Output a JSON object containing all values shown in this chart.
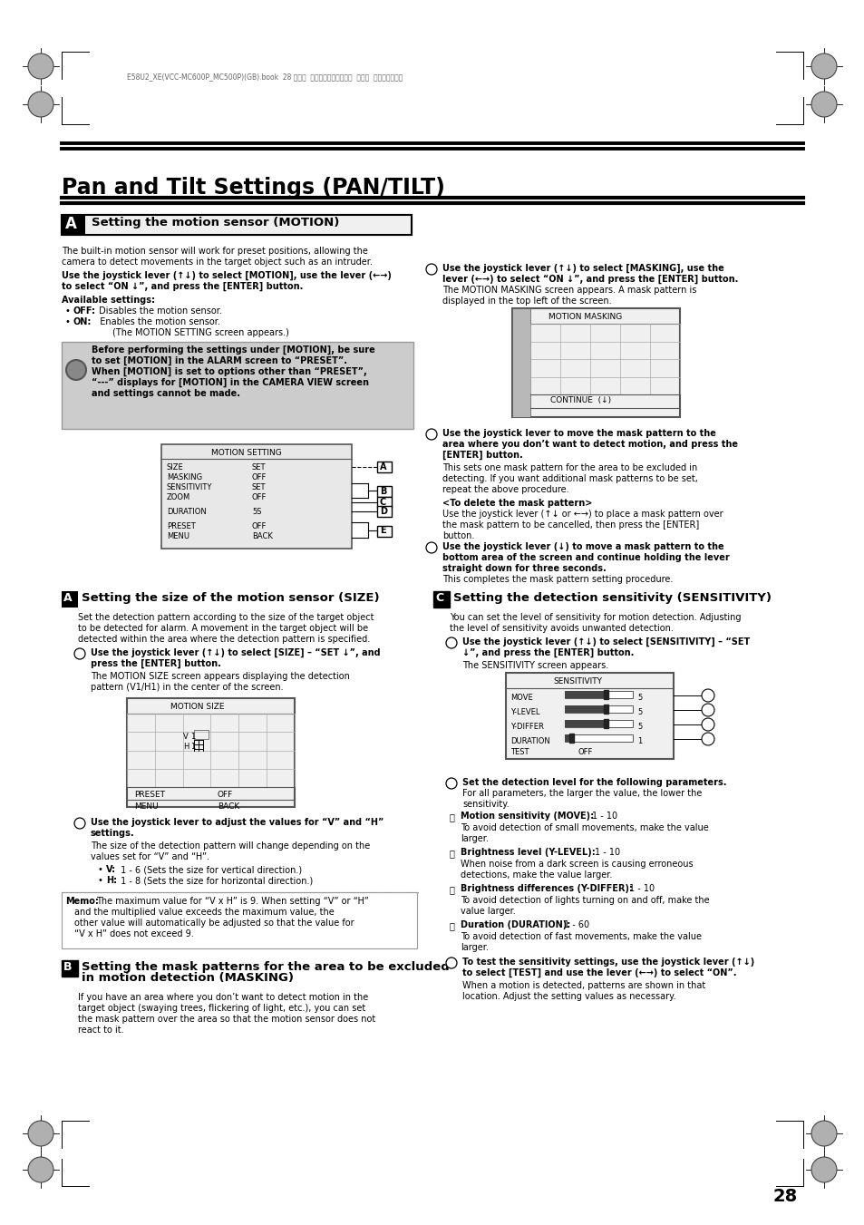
{
  "page_bg": "#ffffff",
  "title": "Pan and Tilt Settings (PAN/TILT)",
  "header_text": "E58U2_XE(VCC-MC600P_MC500P)(GB).book  28 ページ  ２００７年１月１８日  木曜日  午前９時４４分",
  "page_number": "28"
}
